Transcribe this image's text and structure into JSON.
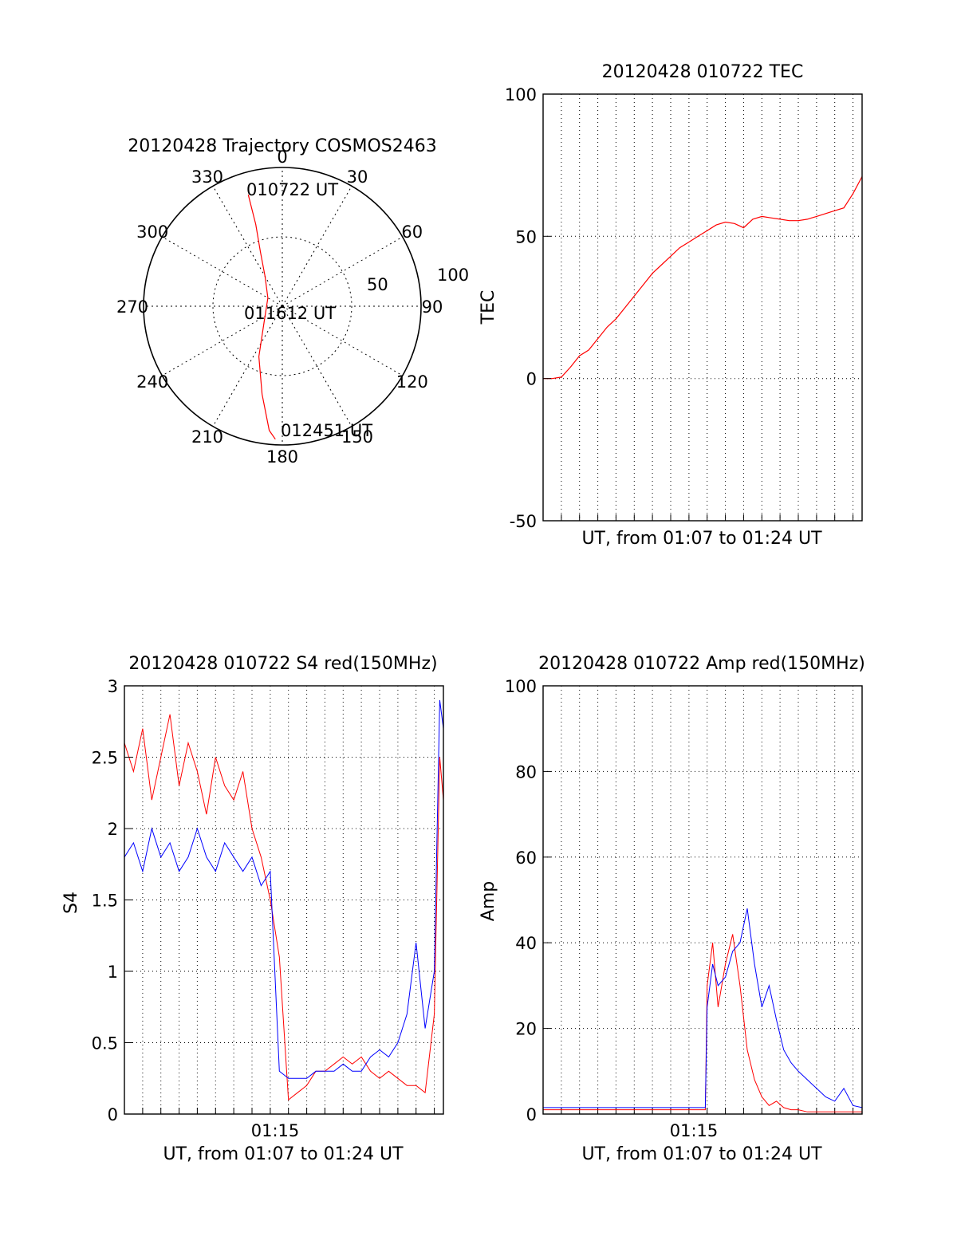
{
  "figure": {
    "background": "#ffffff",
    "series_colors": {
      "red": "#ff0000",
      "blue": "#0000ff"
    }
  },
  "chart_data": [
    {
      "type": "polar",
      "title": "20120428 Trajectory COSMOS2463",
      "angle_ticks": [
        "0",
        "30",
        "60",
        "90",
        "120",
        "150",
        "180",
        "210",
        "240",
        "270",
        "300",
        "330"
      ],
      "angle_values": [
        0,
        30,
        60,
        90,
        120,
        150,
        180,
        210,
        240,
        270,
        300,
        330
      ],
      "radial_ticks": [
        "50",
        "100"
      ],
      "radial_values": [
        50,
        100
      ],
      "radial_range": [
        0,
        100
      ],
      "trajectory": {
        "color": "#ff0000",
        "points_az_r": [
          [
            343,
            84
          ],
          [
            342,
            62
          ],
          [
            338,
            42
          ],
          [
            330,
            25
          ],
          [
            300,
            12
          ],
          [
            230,
            17
          ],
          [
            205,
            40
          ],
          [
            193,
            65
          ],
          [
            186,
            90
          ],
          [
            183,
            96
          ]
        ]
      },
      "annotations": [
        {
          "text": "010722 UT",
          "az": 343,
          "r": 84
        },
        {
          "text": "011612 UT",
          "az": 260,
          "r": 3
        },
        {
          "text": "012451 UT",
          "az": 183,
          "r": 96
        }
      ]
    },
    {
      "type": "line",
      "title": "20120428 010722 TEC",
      "ylabel": "TEC",
      "xlabel": "UT, from 01:07 to 01:24 UT",
      "ylim": [
        -50,
        100
      ],
      "y_ticks": [
        "-50",
        "0",
        "50",
        "100"
      ],
      "x_range_minutes": [
        0,
        17.5
      ],
      "grid": true,
      "series": [
        {
          "color": "#ff0000",
          "x": [
            0,
            0.5,
            1.0,
            1.5,
            2.0,
            2.5,
            3.0,
            3.5,
            4.0,
            4.5,
            5.0,
            5.5,
            6.0,
            6.5,
            7.0,
            7.5,
            8.0,
            8.5,
            9.0,
            9.5,
            10.0,
            10.5,
            11.0,
            11.5,
            12.0,
            12.5,
            13.0,
            13.5,
            14.0,
            14.5,
            15.0,
            15.5,
            16.0,
            16.5,
            17.0,
            17.5
          ],
          "values": [
            0,
            0,
            0.5,
            4,
            8,
            10,
            14,
            18,
            21,
            25,
            29,
            33,
            37,
            40,
            43,
            46,
            48,
            50,
            52,
            54,
            55,
            54.5,
            53,
            56,
            57,
            56.5,
            56,
            55.5,
            55.5,
            56,
            57,
            58,
            59,
            60,
            65,
            71
          ]
        }
      ]
    },
    {
      "type": "line",
      "title": "20120428 010722 S4 red(150MHz)",
      "ylabel": "S4",
      "xlabel": "UT, from 01:07 to 01:24 UT",
      "ylim": [
        0,
        3
      ],
      "y_ticks": [
        "0",
        "0.5",
        "1",
        "1.5",
        "2",
        "2.5",
        "3"
      ],
      "x_tick_labels": [
        "01:15"
      ],
      "x_tick_minutes": [
        8
      ],
      "x_range_minutes": [
        0,
        17.5
      ],
      "grid": true,
      "series": [
        {
          "color": "#ff0000",
          "x": [
            0,
            0.5,
            1.0,
            1.5,
            2.0,
            2.5,
            3.0,
            3.5,
            4.0,
            4.5,
            5.0,
            5.5,
            6.0,
            6.5,
            7.0,
            7.5,
            8.0,
            8.5,
            9.0,
            9.5,
            10.0,
            10.5,
            11.0,
            11.5,
            12.0,
            12.5,
            13.0,
            13.5,
            14.0,
            14.5,
            15.0,
            15.5,
            16.0,
            16.5,
            17.0,
            17.3,
            17.5
          ],
          "values": [
            2.6,
            2.4,
            2.7,
            2.2,
            2.5,
            2.8,
            2.3,
            2.6,
            2.4,
            2.1,
            2.5,
            2.3,
            2.2,
            2.4,
            2.0,
            1.8,
            1.5,
            1.1,
            0.1,
            0.15,
            0.2,
            0.3,
            0.3,
            0.35,
            0.4,
            0.35,
            0.4,
            0.3,
            0.25,
            0.3,
            0.25,
            0.2,
            0.2,
            0.15,
            0.7,
            2.5,
            2.2
          ]
        },
        {
          "color": "#0000ff",
          "x": [
            0,
            0.5,
            1.0,
            1.5,
            2.0,
            2.5,
            3.0,
            3.5,
            4.0,
            4.5,
            5.0,
            5.5,
            6.0,
            6.5,
            7.0,
            7.5,
            8.0,
            8.5,
            9.0,
            9.5,
            10.0,
            10.5,
            11.0,
            11.5,
            12.0,
            12.5,
            13.0,
            13.5,
            14.0,
            14.5,
            15.0,
            15.5,
            16.0,
            16.5,
            17.0,
            17.3,
            17.5
          ],
          "values": [
            1.8,
            1.9,
            1.7,
            2.0,
            1.8,
            1.9,
            1.7,
            1.8,
            2.0,
            1.8,
            1.7,
            1.9,
            1.8,
            1.7,
            1.8,
            1.6,
            1.7,
            0.3,
            0.25,
            0.25,
            0.25,
            0.3,
            0.3,
            0.3,
            0.35,
            0.3,
            0.3,
            0.4,
            0.45,
            0.4,
            0.5,
            0.7,
            1.2,
            0.6,
            1.0,
            2.9,
            2.7
          ]
        }
      ]
    },
    {
      "type": "line",
      "title": "20120428 010722 Amp red(150MHz)",
      "ylabel": "Amp",
      "xlabel": "UT, from 01:07 to 01:24 UT",
      "ylim": [
        0,
        100
      ],
      "y_ticks": [
        "0",
        "20",
        "40",
        "60",
        "80",
        "100"
      ],
      "x_tick_labels": [
        "01:15"
      ],
      "x_tick_minutes": [
        8
      ],
      "x_range_minutes": [
        0,
        17.5
      ],
      "grid": true,
      "series": [
        {
          "color": "#ff0000",
          "x": [
            0,
            2,
            4,
            6,
            8,
            8.9,
            9.0,
            9.3,
            9.6,
            10.0,
            10.4,
            10.8,
            11.2,
            11.6,
            12.0,
            12.4,
            12.8,
            13.2,
            13.6,
            14.0,
            14.5,
            15.0,
            15.5,
            16.0,
            16.5,
            17.0,
            17.5
          ],
          "values": [
            1,
            1,
            1,
            1,
            1,
            1,
            30,
            40,
            25,
            35,
            42,
            30,
            15,
            8,
            4,
            2,
            3,
            1.5,
            1,
            1,
            0.5,
            0.5,
            0.5,
            0.5,
            0.5,
            0.5,
            0.5
          ]
        },
        {
          "color": "#0000ff",
          "x": [
            0,
            2,
            4,
            6,
            8,
            8.9,
            9.0,
            9.3,
            9.6,
            10.0,
            10.4,
            10.8,
            11.2,
            11.6,
            12.0,
            12.4,
            12.8,
            13.2,
            13.6,
            14.0,
            14.5,
            15.0,
            15.5,
            16.0,
            16.5,
            17.0,
            17.5
          ],
          "values": [
            1.5,
            1.5,
            1.5,
            1.5,
            1.5,
            1.5,
            25,
            35,
            30,
            32,
            38,
            40,
            48,
            35,
            25,
            30,
            22,
            15,
            12,
            10,
            8,
            6,
            4,
            3,
            6,
            2,
            1.5
          ]
        }
      ]
    }
  ]
}
